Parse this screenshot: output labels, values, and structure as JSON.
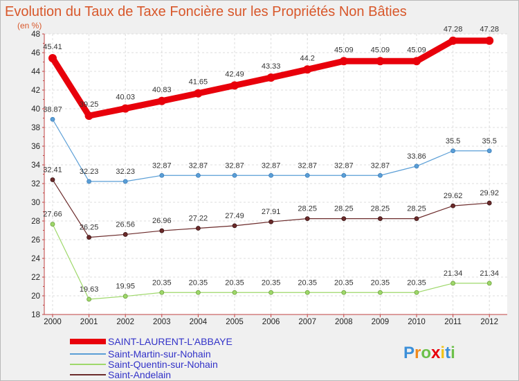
{
  "chart_data": {
    "type": "line",
    "title": "Evolution du Taux de Taxe Foncière sur les Propriétés Non Bâties",
    "ylabel": "(en %)",
    "xlabel": "",
    "x": [
      "2000",
      "2001",
      "2002",
      "2003",
      "2004",
      "2005",
      "2006",
      "2007",
      "2008",
      "2009",
      "2010",
      "2011",
      "2012"
    ],
    "ylim": [
      18,
      48
    ],
    "yticks": [
      18,
      20,
      22,
      24,
      26,
      28,
      30,
      32,
      34,
      36,
      38,
      40,
      42,
      44,
      46,
      48
    ],
    "grid": true,
    "legend_position": "bottom-left",
    "series": [
      {
        "name": "SAINT-LAURENT-L'ABBAYE",
        "color": "#e8000b",
        "values": [
          45.41,
          39.25,
          40.03,
          40.83,
          41.65,
          42.49,
          43.33,
          44.2,
          45.09,
          45.09,
          45.09,
          47.28,
          47.28
        ],
        "labels": [
          "45.41",
          "39.25",
          "40.03",
          "40.83",
          "41.65",
          "42.49",
          "43.33",
          "44.2",
          "45.09",
          "45.09",
          "45.09",
          "47.28",
          "47.28"
        ]
      },
      {
        "name": "Saint-Martin-sur-Nohain",
        "color": "#5a9ed6",
        "values": [
          38.87,
          32.23,
          32.23,
          32.87,
          32.87,
          32.87,
          32.87,
          32.87,
          32.87,
          32.87,
          33.86,
          35.5,
          35.5
        ],
        "labels": [
          "38.87",
          "32.23",
          "32.23",
          "32.87",
          "32.87",
          "32.87",
          "32.87",
          "32.87",
          "32.87",
          "32.87",
          "33.86",
          "35.5",
          "35.5"
        ]
      },
      {
        "name": "Saint-Quentin-sur-Nohain",
        "color": "#9ed86a",
        "values": [
          27.66,
          19.63,
          19.95,
          20.35,
          20.35,
          20.35,
          20.35,
          20.35,
          20.35,
          20.35,
          20.35,
          21.34,
          21.34
        ],
        "labels": [
          "27.66",
          "19.63",
          "19.95",
          "20.35",
          "20.35",
          "20.35",
          "20.35",
          "20.35",
          "20.35",
          "20.35",
          "20.35",
          "21.34",
          "21.34"
        ]
      },
      {
        "name": "Saint-Andelain",
        "color": "#6b2a2a",
        "values": [
          32.41,
          26.25,
          26.56,
          26.96,
          27.22,
          27.49,
          27.91,
          28.25,
          28.25,
          28.25,
          28.25,
          29.62,
          29.92
        ],
        "labels": [
          "32.41",
          "26.25",
          "26.56",
          "26.96",
          "27.22",
          "27.49",
          "27.91",
          "28.25",
          "28.25",
          "28.25",
          "28.25",
          "29.62",
          "29.92"
        ]
      }
    ]
  },
  "logo": {
    "letters": [
      "P",
      "r",
      "o",
      "x",
      "i",
      "t",
      "i"
    ],
    "colors": [
      "#3b8fd9",
      "#f08a1c",
      "#6cc04a",
      "#e8000b",
      "#f0c419",
      "#3b8fd9",
      "#6cc04a"
    ]
  }
}
